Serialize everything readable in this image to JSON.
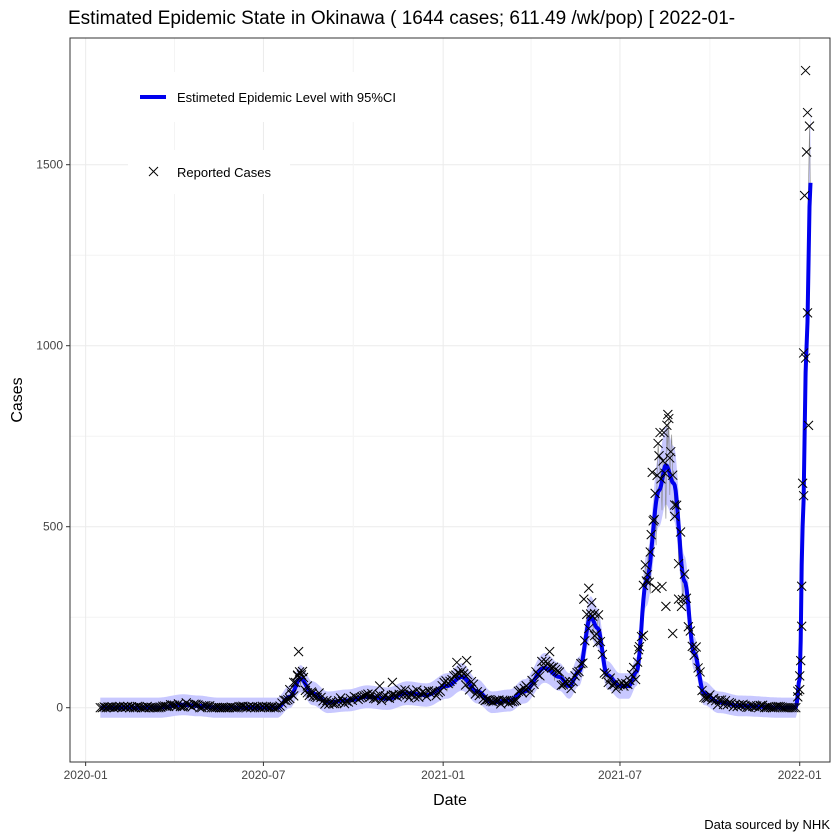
{
  "chart_data": {
    "type": "line",
    "title": "Estimated Epidemic State in Okinawa  ( 1644 cases; 611.49 /wk/pop) [ 2022-01-",
    "xlabel": "Date",
    "ylabel": "Cases",
    "caption": "Data sourced by NHK",
    "xlim": [
      "2019-12-16",
      "2022-02-01"
    ],
    "ylim": [
      -150,
      1850
    ],
    "x_ticks": [
      "2020-01",
      "2020-07",
      "2021-01",
      "2021-07",
      "2022-01"
    ],
    "y_ticks": [
      0,
      500,
      1000,
      1500
    ],
    "grid": true,
    "legend_position": "top-left",
    "series": [
      {
        "name": "Estimeted Epidemic Level with 95%CI",
        "kind": "line",
        "color": "#0000ee",
        "points": [
          [
            "2020-01-16",
            0
          ],
          [
            "2020-03-15",
            0
          ],
          [
            "2020-04-10",
            8
          ],
          [
            "2020-04-25",
            5
          ],
          [
            "2020-05-15",
            0
          ],
          [
            "2020-07-15",
            0
          ],
          [
            "2020-07-28",
            30
          ],
          [
            "2020-08-08",
            80
          ],
          [
            "2020-08-20",
            40
          ],
          [
            "2020-09-05",
            15
          ],
          [
            "2020-09-25",
            20
          ],
          [
            "2020-10-15",
            30
          ],
          [
            "2020-11-05",
            25
          ],
          [
            "2020-11-25",
            40
          ],
          [
            "2020-12-15",
            35
          ],
          [
            "2021-01-05",
            60
          ],
          [
            "2021-01-20",
            85
          ],
          [
            "2021-02-05",
            45
          ],
          [
            "2021-02-20",
            15
          ],
          [
            "2021-03-10",
            20
          ],
          [
            "2021-03-25",
            45
          ],
          [
            "2021-04-15",
            110
          ],
          [
            "2021-04-30",
            85
          ],
          [
            "2021-05-10",
            60
          ],
          [
            "2021-05-20",
            100
          ],
          [
            "2021-06-01",
            250
          ],
          [
            "2021-06-08",
            220
          ],
          [
            "2021-06-18",
            90
          ],
          [
            "2021-07-01",
            60
          ],
          [
            "2021-07-10",
            60
          ],
          [
            "2021-07-18",
            100
          ],
          [
            "2021-07-28",
            350
          ],
          [
            "2021-08-10",
            600
          ],
          [
            "2021-08-17",
            670
          ],
          [
            "2021-08-25",
            620
          ],
          [
            "2021-09-05",
            350
          ],
          [
            "2021-09-15",
            150
          ],
          [
            "2021-09-25",
            40
          ],
          [
            "2021-10-10",
            15
          ],
          [
            "2021-11-01",
            5
          ],
          [
            "2021-12-15",
            0
          ],
          [
            "2021-12-28",
            0
          ],
          [
            "2022-01-01",
            80
          ],
          [
            "2022-01-04",
            500
          ],
          [
            "2022-01-08",
            1000
          ],
          [
            "2022-01-12",
            1450
          ]
        ]
      },
      {
        "name": "Reported Cases",
        "kind": "scatter",
        "marker": "x",
        "color": "#000000",
        "points": [
          [
            "2020-07-28",
            50
          ],
          [
            "2020-08-01",
            70
          ],
          [
            "2020-08-05",
            90
          ],
          [
            "2020-08-06",
            155
          ],
          [
            "2020-08-10",
            100
          ],
          [
            "2020-08-15",
            60
          ],
          [
            "2020-08-20",
            40
          ],
          [
            "2020-10-28",
            60
          ],
          [
            "2020-11-10",
            70
          ],
          [
            "2021-01-15",
            125
          ],
          [
            "2021-01-25",
            130
          ],
          [
            "2021-04-20",
            155
          ],
          [
            "2021-05-25",
            300
          ],
          [
            "2021-05-30",
            330
          ],
          [
            "2021-06-02",
            290
          ],
          [
            "2021-06-05",
            260
          ],
          [
            "2021-06-08",
            180
          ],
          [
            "2021-07-20",
            160
          ],
          [
            "2021-07-25",
            200
          ],
          [
            "2021-07-28",
            350
          ],
          [
            "2021-08-01",
            430
          ],
          [
            "2021-08-03",
            650
          ],
          [
            "2021-08-05",
            520
          ],
          [
            "2021-08-07",
            330
          ],
          [
            "2021-08-09",
            730
          ],
          [
            "2021-08-11",
            760
          ],
          [
            "2021-08-13",
            335
          ],
          [
            "2021-08-15",
            760
          ],
          [
            "2021-08-17",
            280
          ],
          [
            "2021-08-19",
            810
          ],
          [
            "2021-08-21",
            690
          ],
          [
            "2021-08-24",
            205
          ],
          [
            "2021-08-26",
            560
          ],
          [
            "2021-08-30",
            300
          ],
          [
            "2021-09-02",
            280
          ],
          [
            "2021-12-30",
            30
          ],
          [
            "2022-01-01",
            50
          ],
          [
            "2022-01-02",
            130
          ],
          [
            "2022-01-03",
            225
          ],
          [
            "2022-01-04",
            620
          ],
          [
            "2022-01-05",
            980
          ],
          [
            "2022-01-06",
            1415
          ],
          [
            "2022-01-07",
            1760
          ],
          [
            "2022-01-08",
            1535
          ],
          [
            "2022-01-09",
            1644
          ],
          [
            "2022-01-10",
            780
          ]
        ]
      }
    ]
  }
}
